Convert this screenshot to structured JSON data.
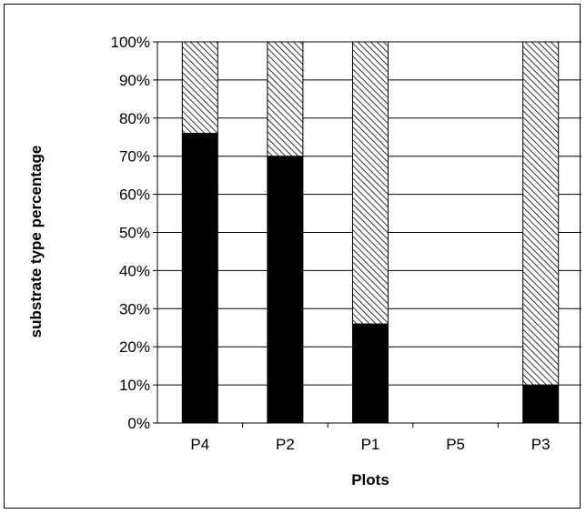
{
  "chart_data": {
    "type": "bar",
    "stacked": true,
    "percent_stacked": true,
    "title": "",
    "xlabel": "Plots",
    "ylabel": "substrate type percentage",
    "categories": [
      "P4",
      "P2",
      "P1",
      "P5",
      "P3"
    ],
    "y_ticks": [
      "0%",
      "10%",
      "20%",
      "30%",
      "40%",
      "50%",
      "60%",
      "70%",
      "80%",
      "90%",
      "100%"
    ],
    "ylim": [
      0,
      100
    ],
    "grid": true,
    "legend": "none",
    "series": [
      {
        "values": [
          76,
          70,
          26,
          0,
          10
        ],
        "color": "#000000",
        "fill": "solid"
      },
      {
        "values": [
          24,
          30,
          74,
          0,
          90
        ],
        "color": "#000000",
        "fill": "diagonal-hatch"
      }
    ]
  }
}
